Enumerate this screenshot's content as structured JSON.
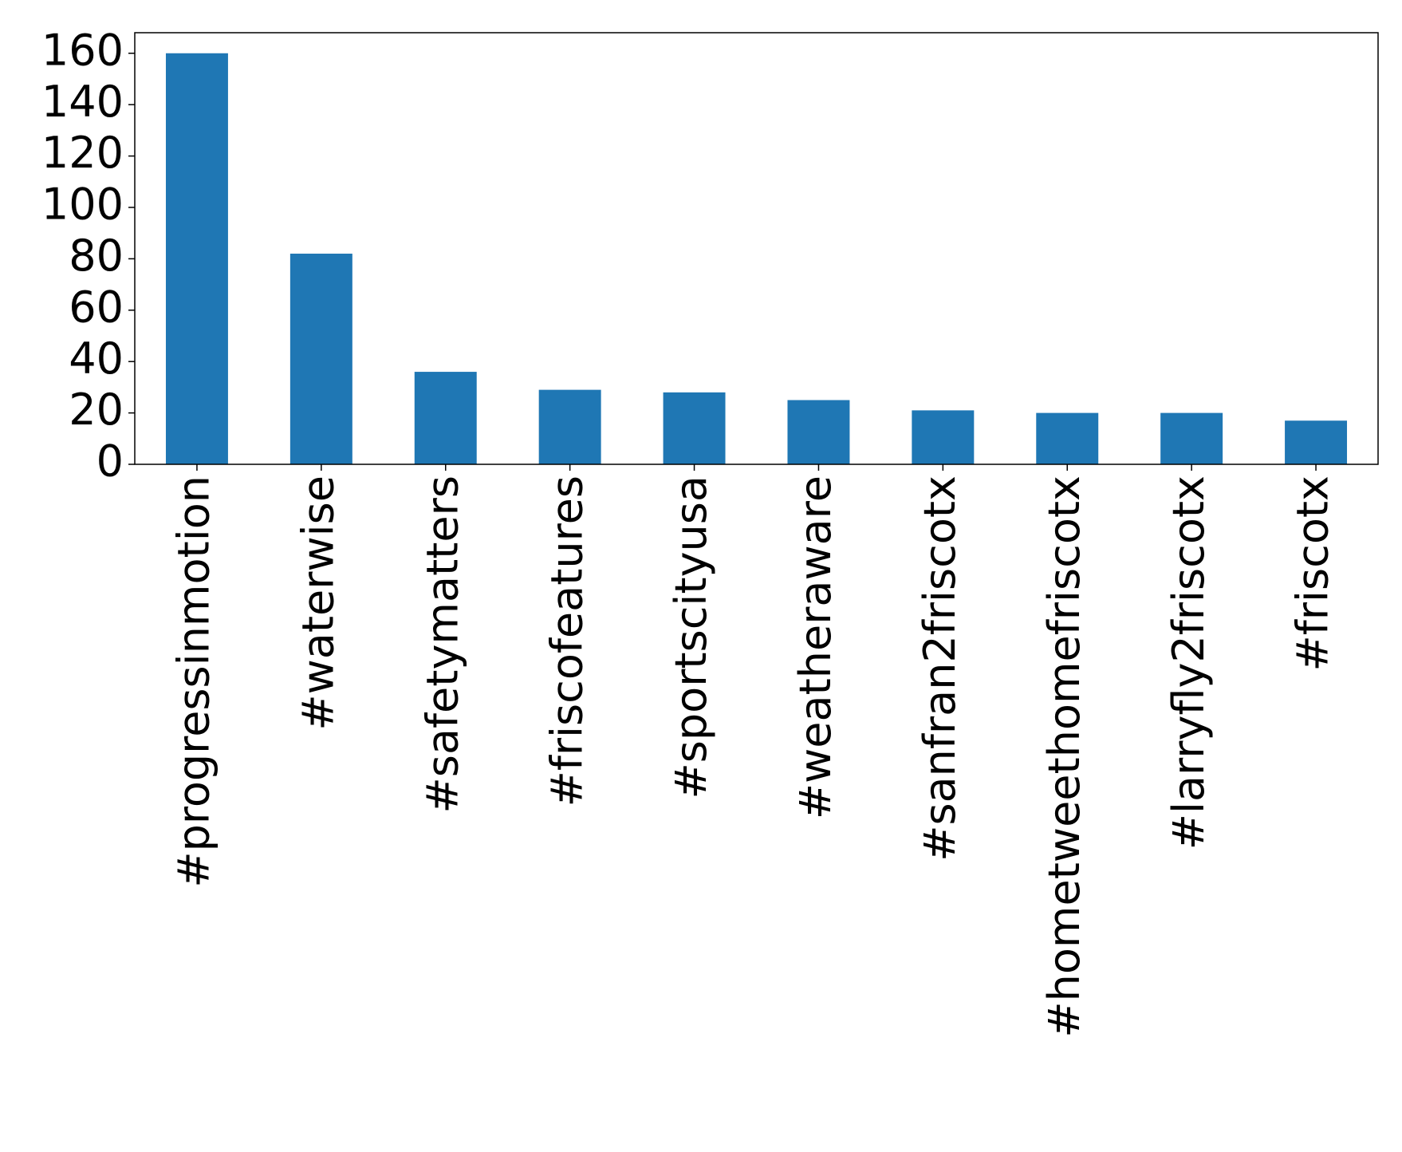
{
  "chart_data": {
    "type": "bar",
    "categories": [
      "#progressinmotion",
      "#waterwise",
      "#safetymatters",
      "#friscofeatures",
      "#sportscityusa",
      "#weatheraware",
      "#sanfran2friscotx",
      "#hometweethomefriscotx",
      "#larryfly2friscotx",
      "#friscotx"
    ],
    "values": [
      160,
      82,
      36,
      29,
      28,
      25,
      21,
      20,
      20,
      17
    ],
    "color": "#1f77b4",
    "ylim": [
      0,
      168
    ],
    "yticks": [
      0,
      20,
      40,
      60,
      80,
      100,
      120,
      140,
      160
    ],
    "grid": false
  }
}
